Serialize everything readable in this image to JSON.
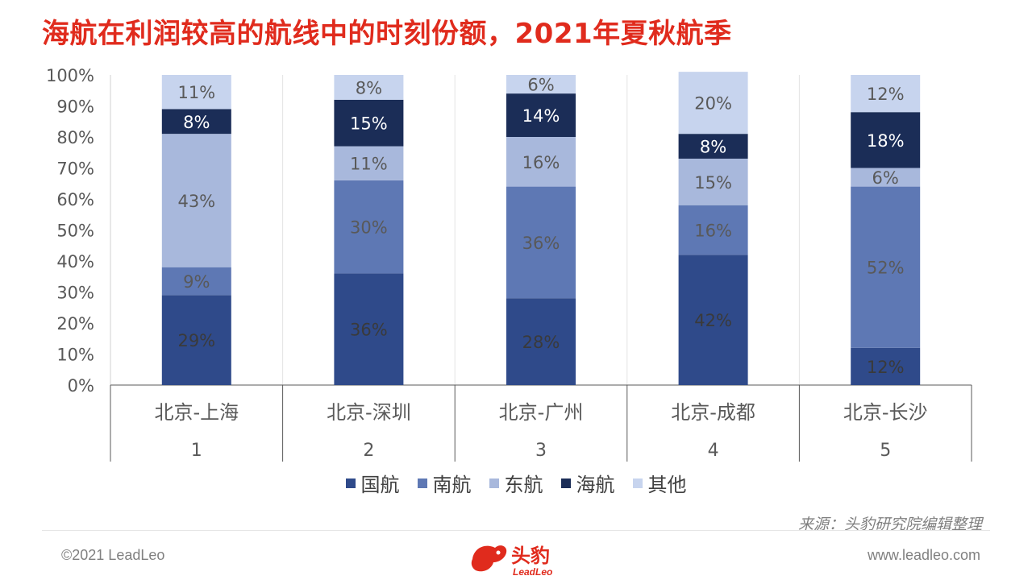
{
  "title": "海航在利润较高的航线中的时刻份额，2021年夏秋航季",
  "source": "来源：头豹研究院编辑整理",
  "footer": {
    "copyright": "©2021 LeadLeo",
    "website": "www.leadleo.com",
    "logo_text": "头豹",
    "logo_subtext": "LeadLeo"
  },
  "colors": {
    "title": "#e02b1d",
    "国航": "#2f4a8a",
    "南航": "#5e78b4",
    "东航": "#a8b8dc",
    "海航": "#1b2d57",
    "其他": "#c7d4ee"
  },
  "chart_data": {
    "type": "bar",
    "stacked": true,
    "categories": [
      "北京-上海",
      "北京-深圳",
      "北京-广州",
      "北京-成都",
      "北京-长沙"
    ],
    "category_index": [
      "1",
      "2",
      "3",
      "4",
      "5"
    ],
    "series": [
      {
        "name": "国航",
        "values": [
          29,
          36,
          28,
          42,
          12
        ],
        "labels": [
          "29%",
          "36%",
          "28%",
          "42%",
          "12%"
        ]
      },
      {
        "name": "南航",
        "values": [
          9,
          30,
          36,
          16,
          52
        ],
        "labels": [
          "9%",
          "30%",
          "36%",
          "16%",
          "52%"
        ]
      },
      {
        "name": "东航",
        "values": [
          43,
          11,
          16,
          15,
          6
        ],
        "labels": [
          "43%",
          "11%",
          "16%",
          "15%",
          "6%"
        ]
      },
      {
        "name": "海航",
        "values": [
          8,
          15,
          14,
          8,
          18
        ],
        "labels": [
          "8%",
          "15%",
          "14%",
          "8%",
          "18%"
        ]
      },
      {
        "name": "其他",
        "values": [
          11,
          8,
          6,
          20,
          12
        ],
        "labels": [
          "11%",
          "8%",
          "6%",
          "20%",
          "12%"
        ]
      }
    ],
    "yticks": [
      "0%",
      "10%",
      "20%",
      "30%",
      "40%",
      "50%",
      "60%",
      "70%",
      "80%",
      "90%",
      "100%"
    ],
    "ylim": [
      0,
      100
    ],
    "legend": "bottom",
    "grid": true
  }
}
